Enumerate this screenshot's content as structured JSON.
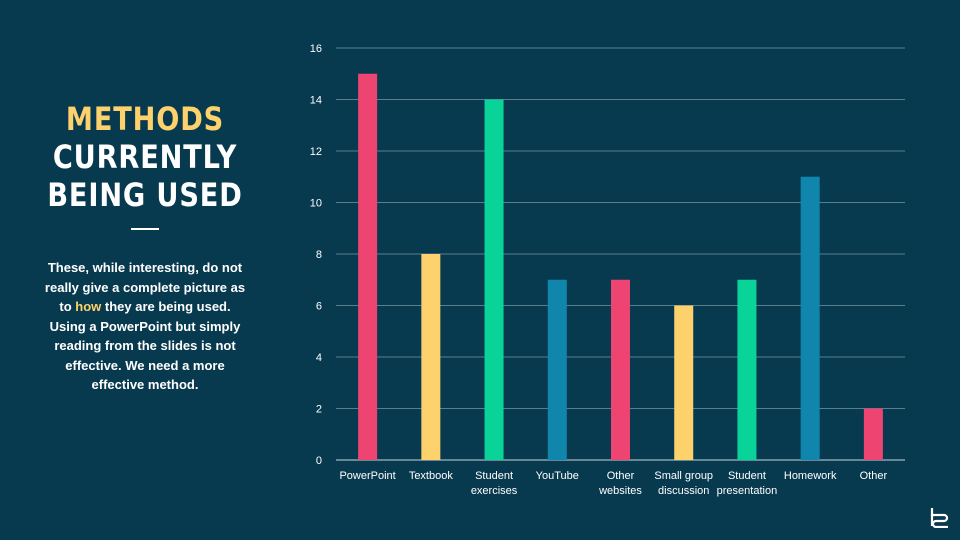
{
  "slide": {
    "title_lines": [
      "Methods",
      "currently",
      "being used"
    ],
    "body_before": "These, while interesting, do not really give a complete picture as to ",
    "body_highlight": "how",
    "body_after": " they are being used. Using a PowerPoint but simply reading from the slides is not effective. We need a more effective method."
  },
  "colors": {
    "background": "#083a4f",
    "accent": "#fdd16b",
    "pink": "#ee4472",
    "yellow": "#fdd16b",
    "green": "#0ad39a",
    "blue": "#1186ad"
  },
  "logo_icon": "logo-icon",
  "chart_data": {
    "type": "bar",
    "categories": [
      [
        "PowerPoint"
      ],
      [
        "Textbook"
      ],
      [
        "Student",
        "exercises"
      ],
      [
        "YouTube"
      ],
      [
        "Other",
        "websites"
      ],
      [
        "Small group",
        "discussion"
      ],
      [
        "Student",
        "presentation"
      ],
      [
        "Homework"
      ],
      [
        "Other"
      ]
    ],
    "values": [
      15,
      8,
      14,
      7,
      7,
      6,
      7,
      11,
      2
    ],
    "bar_colors": [
      "#ee4472",
      "#fdd16b",
      "#0ad39a",
      "#1186ad",
      "#ee4472",
      "#fdd16b",
      "#0ad39a",
      "#1186ad",
      "#ee4472"
    ],
    "yticks": [
      0,
      2,
      4,
      6,
      8,
      10,
      12,
      14,
      16
    ],
    "ylim": [
      0,
      16
    ],
    "grid": true,
    "title": "",
    "xlabel": "",
    "ylabel": ""
  }
}
